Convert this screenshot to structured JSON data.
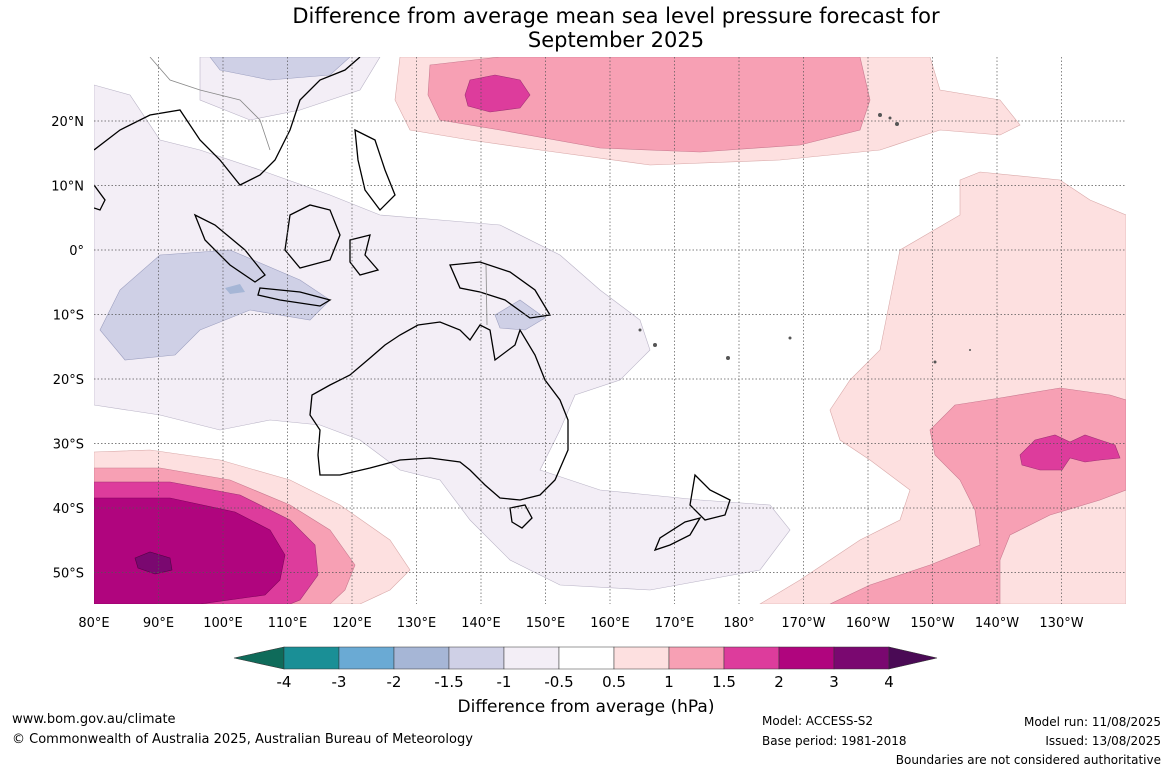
{
  "title": {
    "line1": "Difference from average mean sea level pressure forecast for",
    "line2": "September 2025"
  },
  "axes": {
    "lon_labels": [
      "80°E",
      "90°E",
      "100°E",
      "110°E",
      "120°E",
      "130°E",
      "140°E",
      "150°E",
      "160°E",
      "170°E",
      "180°",
      "170°W",
      "160°W",
      "150°W",
      "140°W",
      "130°W"
    ],
    "lat_labels": [
      "20°N",
      "10°N",
      "0°",
      "10°S",
      "20°S",
      "30°S",
      "40°S",
      "50°S"
    ]
  },
  "colorbar": {
    "label": "Difference from average (hPa)",
    "ticks": [
      "-4",
      "-3",
      "-2",
      "-1.5",
      "-1",
      "-0.5",
      "0.5",
      "1",
      "1.5",
      "2",
      "3",
      "4"
    ],
    "colors": [
      "#0f6b5a",
      "#1a8f96",
      "#6aaad4",
      "#a6b6d6",
      "#cfd0e6",
      "#f3eef6",
      "#ffffff",
      "#fde0e0",
      "#f7a0b4",
      "#dd3c9c",
      "#b0057e",
      "#7a0870",
      "#4a0a55"
    ]
  },
  "footer": {
    "website": "www.bom.gov.au/climate",
    "copyright": "© Commonwealth of Australia 2025, Australian Bureau of Meteorology",
    "model": "Model: ACCESS-S2",
    "base_period": "Base period: 1981-2018",
    "model_run": "Model run: 11/08/2025",
    "issued": "Issued: 13/08/2025",
    "disclaimer": "Boundaries are not considered authoritative"
  }
}
